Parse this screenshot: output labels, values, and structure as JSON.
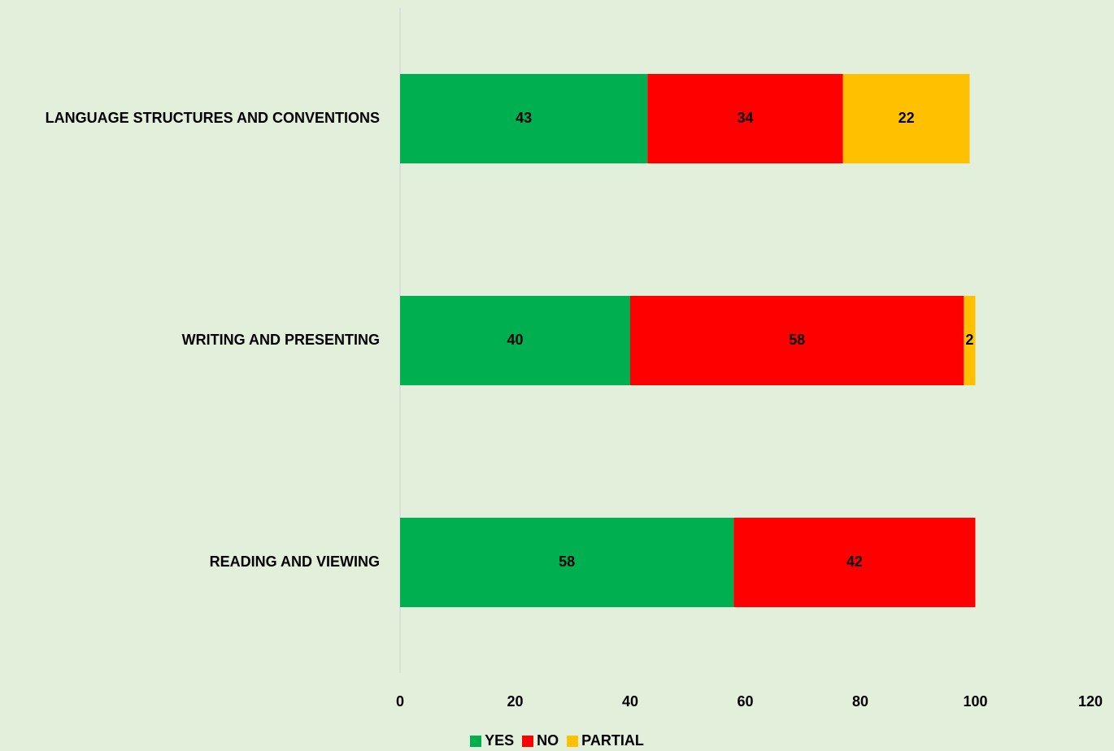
{
  "chart_data": {
    "type": "bar",
    "orientation": "horizontal",
    "stacked": true,
    "title": "",
    "xlabel": "",
    "ylabel": "",
    "categories": [
      "LANGUAGE STRUCTURES AND CONVENTIONS",
      "WRITING AND PRESENTING",
      "READING AND VIEWING"
    ],
    "series": [
      {
        "name": "YES",
        "color": "#00b050",
        "values": [
          43,
          40,
          58
        ]
      },
      {
        "name": "NO",
        "color": "#ff0000",
        "values": [
          34,
          58,
          42
        ]
      },
      {
        "name": "PARTIAL",
        "color": "#ffc000",
        "values": [
          22,
          2,
          0
        ]
      }
    ],
    "xlim": [
      0,
      120
    ],
    "xticks": [
      0,
      20,
      40,
      60,
      80,
      100,
      120
    ],
    "grid": false,
    "legend_position": "bottom",
    "background": "#e2efda"
  }
}
